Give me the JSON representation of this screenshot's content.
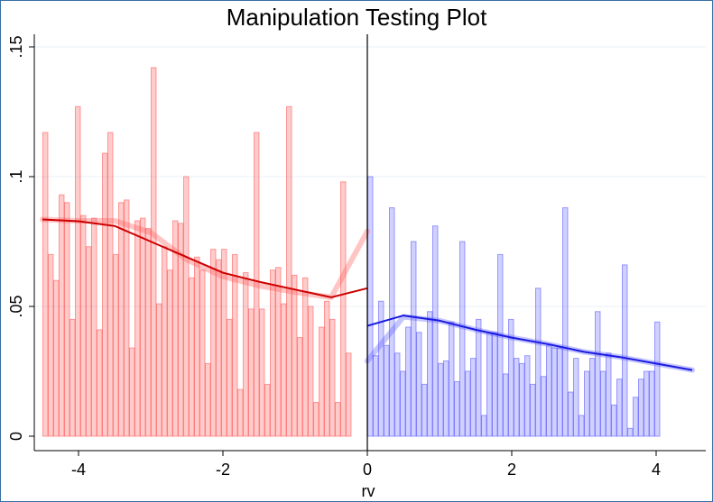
{
  "chart_data": {
    "type": "bar",
    "title": "Manipulation Testing Plot",
    "xlabel": "rv",
    "ylabel": "",
    "xlim": [
      -4.5,
      4.5
    ],
    "ylim": [
      0,
      0.15
    ],
    "x_ticks": [
      -4,
      -2,
      0,
      2,
      4
    ],
    "x_tick_labels": [
      "-4",
      "-2",
      "0",
      "2",
      "4"
    ],
    "y_ticks": [
      0,
      0.05,
      0.1,
      0.15
    ],
    "y_tick_labels": [
      "0",
      ".05",
      ".1",
      ".15"
    ],
    "grid": true,
    "cutoff": 0,
    "bin_width": 0.075,
    "series": [
      {
        "side": "left",
        "color": "#ff0000",
        "bin_start": -4.5,
        "histogram": [
          0.117,
          0.07,
          0.06,
          0.093,
          0.09,
          0.045,
          0.127,
          0.085,
          0.073,
          0.084,
          0.041,
          0.109,
          0.117,
          0.07,
          0.09,
          0.091,
          0.034,
          0.083,
          0.084,
          0.08,
          0.142,
          0.051,
          0.073,
          0.064,
          0.083,
          0.082,
          0.1,
          0.061,
          0.069,
          0.064,
          0.028,
          0.072,
          0.068,
          0.072,
          0.045,
          0.07,
          0.018,
          0.063,
          0.049,
          0.117,
          0.049,
          0.02,
          0.064,
          0.065,
          0.051,
          0.127,
          0.062,
          0.038,
          0.061,
          0.05,
          0.013,
          0.042,
          0.052,
          0.045,
          0.013,
          0.098,
          0.032
        ],
        "fit": [
          [
            -4.5,
            0.0835
          ],
          [
            -4.0,
            0.0828
          ],
          [
            -3.5,
            0.081
          ],
          [
            -3.0,
            0.075
          ],
          [
            -2.5,
            0.069
          ],
          [
            -2.0,
            0.063
          ],
          [
            -1.5,
            0.0595
          ],
          [
            -1.0,
            0.0565
          ],
          [
            -0.5,
            0.0535
          ],
          [
            0.0,
            0.057
          ]
        ],
        "ci_band": [
          [
            -4.5,
            0.0835
          ],
          [
            -4.0,
            0.083
          ],
          [
            -3.5,
            0.083
          ],
          [
            -3.0,
            0.0785
          ],
          [
            -2.5,
            0.068
          ],
          [
            -2.0,
            0.0615
          ],
          [
            -1.5,
            0.058
          ],
          [
            -1.0,
            0.0555
          ],
          [
            -0.5,
            0.0535
          ],
          [
            0.0,
            0.079
          ]
        ]
      },
      {
        "side": "right",
        "color": "#0000ff",
        "bin_start": 0.0,
        "histogram": [
          0.1,
          0.031,
          0.052,
          0.035,
          0.088,
          0.032,
          0.025,
          0.042,
          0.075,
          0.04,
          0.02,
          0.048,
          0.081,
          0.028,
          0.029,
          0.044,
          0.021,
          0.075,
          0.025,
          0.03,
          0.045,
          0.008,
          0.04,
          0.04,
          0.07,
          0.024,
          0.045,
          0.03,
          0.028,
          0.031,
          0.02,
          0.057,
          0.023,
          0.035,
          0.034,
          0.034,
          0.088,
          0.017,
          0.03,
          0.008,
          0.025,
          0.03,
          0.048,
          0.025,
          0.032,
          0.012,
          0.022,
          0.066,
          0.003,
          0.015,
          0.022,
          0.025,
          0.025,
          0.044
        ],
        "fit": [
          [
            0.0,
            0.0425
          ],
          [
            0.5,
            0.0465
          ],
          [
            1.0,
            0.0445
          ],
          [
            1.5,
            0.041
          ],
          [
            2.0,
            0.038
          ],
          [
            2.5,
            0.0355
          ],
          [
            3.0,
            0.0325
          ],
          [
            3.5,
            0.0305
          ],
          [
            4.0,
            0.028
          ],
          [
            4.5,
            0.0255
          ]
        ],
        "ci_band": [
          [
            0.0,
            0.029
          ],
          [
            0.5,
            0.046
          ],
          [
            1.0,
            0.0445
          ],
          [
            1.5,
            0.041
          ],
          [
            2.0,
            0.038
          ],
          [
            2.5,
            0.0355
          ],
          [
            3.0,
            0.0325
          ],
          [
            3.5,
            0.0305
          ],
          [
            4.0,
            0.028
          ],
          [
            4.5,
            0.0255
          ]
        ]
      }
    ]
  }
}
